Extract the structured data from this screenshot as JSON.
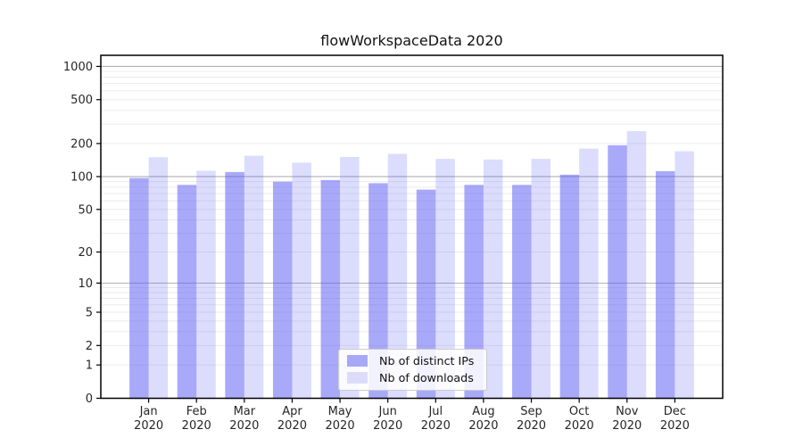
{
  "chart_data": {
    "type": "bar",
    "title": "flowWorkspaceData 2020",
    "categories": [
      "Jan",
      "Feb",
      "Mar",
      "Apr",
      "May",
      "Jun",
      "Jul",
      "Aug",
      "Sep",
      "Oct",
      "Nov",
      "Dec"
    ],
    "x_tick_second_line": "2020",
    "series": [
      {
        "name": "Nb of distinct IPs",
        "color": "#a8a8f8",
        "bar_fill": "#5a5af5",
        "bar_opacity": 0.52,
        "values": [
          97,
          84,
          110,
          90,
          93,
          87,
          76,
          84,
          84,
          104,
          193,
          112
        ]
      },
      {
        "name": "Nb of downloads",
        "color": "#dcdcf9",
        "bar_fill": "#5a5af5",
        "bar_opacity": 0.21,
        "values": [
          150,
          113,
          155,
          134,
          151,
          161,
          145,
          143,
          145,
          180,
          259,
          170
        ]
      }
    ],
    "y_scale": "log-like (position proportional to log10(1+value))",
    "y_ticks": [
      0,
      1,
      2,
      5,
      10,
      20,
      50,
      100,
      200,
      500,
      1000
    ],
    "ylim": [
      0,
      1000
    ],
    "grid": "horizontal minor + major gridlines, majors at 10/100/1000",
    "legend_position": "lower center",
    "style": {
      "grid_minor_color": "#ebebeb",
      "grid_major_color": "#b0b0b0",
      "frame_color": "#000000",
      "tick_label_color": "#262626"
    }
  }
}
